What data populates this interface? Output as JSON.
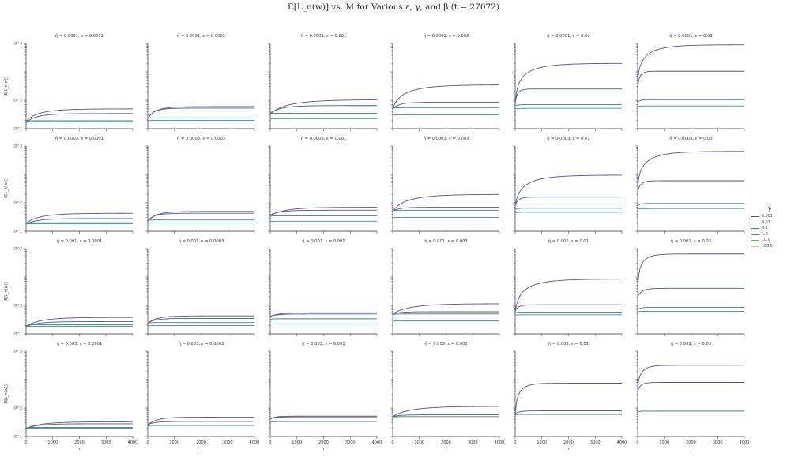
{
  "title": "E[L_n(w)] vs. M for Various ε, γ, and β (t = 27072)",
  "chart_data": {
    "type": "line",
    "grid": false,
    "yscale": "log",
    "xlim": [
      0,
      4000
    ],
    "ylim": [
      1,
      1000
    ],
    "xticks": [
      "0",
      "1000",
      "2000",
      "3000",
      "4000"
    ],
    "yticks": [
      "10^0",
      "10^1",
      "10^2",
      "10^3"
    ],
    "xlabel": "τ",
    "ylabel": "E[L_n(w)]",
    "legend": {
      "title": "γ̃",
      "placement": "right",
      "entries": [
        "0.001",
        "0.01",
        "0.1",
        "1.0",
        "10.0",
        "100.0"
      ],
      "colors": [
        "#5a4e92",
        "#485d8e",
        "#3c7b8e",
        "#2f9a86",
        "#4ec06c",
        "#b9dc3c"
      ]
    },
    "panels": [
      {
        "title": "η̃ = 0.0001, ε = 0.0001",
        "series": [
          {
            "name": "0.001",
            "start": 1.8,
            "end": 5.0,
            "rate": 700
          },
          {
            "name": "0.01",
            "start": 1.6,
            "end": 3.4,
            "rate": 500
          },
          {
            "name": "0.1",
            "start": 1.8,
            "end": 1.9,
            "rate": 100
          },
          {
            "name": "1.0",
            "start": 1.7,
            "end": 1.75,
            "rate": 100
          }
        ]
      },
      {
        "title": "η̃ = 0.0001, ε = 0.0003",
        "series": [
          {
            "name": "0.001",
            "start": 2.2,
            "end": 6.0,
            "rate": 400
          },
          {
            "name": "0.01",
            "start": 2.2,
            "end": 5.3,
            "rate": 300
          },
          {
            "name": "0.1",
            "start": 2.3,
            "end": 2.4,
            "rate": 100
          },
          {
            "name": "1.0",
            "start": 1.9,
            "end": 1.95,
            "rate": 100
          }
        ]
      },
      {
        "title": "η̃ = 0.0001, ε = 0.001",
        "series": [
          {
            "name": "0.001",
            "start": 3.2,
            "end": 10.5,
            "rate": 1000
          },
          {
            "name": "0.01",
            "start": 3.5,
            "end": 6.5,
            "rate": 500
          },
          {
            "name": "0.1",
            "start": 3.4,
            "end": 3.5,
            "rate": 100
          },
          {
            "name": "1.0",
            "start": 2.2,
            "end": 2.25,
            "rate": 100
          }
        ]
      },
      {
        "title": "η̃ = 0.0001, ε = 0.003",
        "series": [
          {
            "name": "0.001",
            "start": 5.0,
            "end": 35.0,
            "rate": 900
          },
          {
            "name": "0.01",
            "start": 5.0,
            "end": 8.5,
            "rate": 300
          },
          {
            "name": "0.1",
            "start": 5.2,
            "end": 5.5,
            "rate": 100
          },
          {
            "name": "1.0",
            "start": 3.0,
            "end": 3.05,
            "rate": 100
          }
        ]
      },
      {
        "title": "η̃ = 0.0001, ε = 0.01",
        "series": [
          {
            "name": "0.001",
            "start": 8.0,
            "end": 200.0,
            "rate": 800
          },
          {
            "name": "0.01",
            "start": 8.0,
            "end": 25.0,
            "rate": 120
          },
          {
            "name": "0.1",
            "start": 6.5,
            "end": 7.0,
            "rate": 100
          },
          {
            "name": "1.0",
            "start": 5.0,
            "end": 5.2,
            "rate": 100
          }
        ]
      },
      {
        "title": "η̃ = 0.0001, ε = 0.03",
        "series": [
          {
            "name": "0.001",
            "start": 50.0,
            "end": 900.0,
            "rate": 700
          },
          {
            "name": "0.01",
            "start": 30.0,
            "end": 105.0,
            "rate": 120
          },
          {
            "name": "0.1",
            "start": 8.5,
            "end": 10.5,
            "rate": 100
          },
          {
            "name": "1.0",
            "start": 6.0,
            "end": 6.3,
            "rate": 100
          }
        ]
      },
      {
        "title": "η̃ = 0.0003, ε = 0.0001",
        "series": [
          {
            "name": "0.001",
            "start": 1.9,
            "end": 4.3,
            "rate": 700
          },
          {
            "name": "0.01",
            "start": 1.8,
            "end": 2.8,
            "rate": 500
          },
          {
            "name": "0.1",
            "start": 1.9,
            "end": 2.0,
            "rate": 100
          },
          {
            "name": "1.0",
            "start": 1.8,
            "end": 1.85,
            "rate": 100
          }
        ]
      },
      {
        "title": "η̃ = 0.0003, ε = 0.0003",
        "series": [
          {
            "name": "0.001",
            "start": 2.2,
            "end": 5.0,
            "rate": 400
          },
          {
            "name": "0.01",
            "start": 2.3,
            "end": 4.3,
            "rate": 300
          },
          {
            "name": "0.1",
            "start": 2.4,
            "end": 2.5,
            "rate": 100
          },
          {
            "name": "1.0",
            "start": 1.9,
            "end": 1.95,
            "rate": 100
          }
        ]
      },
      {
        "title": "η̃ = 0.0003, ε = 0.001",
        "series": [
          {
            "name": "0.001",
            "start": 3.5,
            "end": 7.0,
            "rate": 700
          },
          {
            "name": "0.01",
            "start": 3.7,
            "end": 5.5,
            "rate": 400
          },
          {
            "name": "0.1",
            "start": 3.4,
            "end": 3.5,
            "rate": 100
          },
          {
            "name": "1.0",
            "start": 2.2,
            "end": 2.25,
            "rate": 100
          }
        ]
      },
      {
        "title": "η̃ = 0.0003, ε = 0.003",
        "series": [
          {
            "name": "0.001",
            "start": 5.0,
            "end": 20.0,
            "rate": 900
          },
          {
            "name": "0.01",
            "start": 5.2,
            "end": 7.0,
            "rate": 300
          },
          {
            "name": "0.1",
            "start": 5.3,
            "end": 5.5,
            "rate": 100
          },
          {
            "name": "1.0",
            "start": 3.0,
            "end": 3.05,
            "rate": 100
          }
        ]
      },
      {
        "title": "η̃ = 0.0003, ε = 0.01",
        "series": [
          {
            "name": "0.001",
            "start": 8.0,
            "end": 95.0,
            "rate": 800
          },
          {
            "name": "0.01",
            "start": 8.0,
            "end": 16.0,
            "rate": 150
          },
          {
            "name": "0.1",
            "start": 6.0,
            "end": 6.5,
            "rate": 100
          },
          {
            "name": "1.0",
            "start": 4.5,
            "end": 4.7,
            "rate": 100
          }
        ]
      },
      {
        "title": "η̃ = 0.0003, ε = 0.03",
        "series": [
          {
            "name": "0.001",
            "start": 40.0,
            "end": 650.0,
            "rate": 700
          },
          {
            "name": "0.01",
            "start": 25.0,
            "end": 60.0,
            "rate": 150
          },
          {
            "name": "0.1",
            "start": 8.0,
            "end": 9.5,
            "rate": 100
          },
          {
            "name": "1.0",
            "start": 6.0,
            "end": 6.3,
            "rate": 100
          }
        ]
      },
      {
        "title": "η̃ = 0.001, ε = 0.0001",
        "series": [
          {
            "name": "0.001",
            "start": 1.8,
            "end": 3.8,
            "rate": 700
          },
          {
            "name": "0.01",
            "start": 1.8,
            "end": 2.7,
            "rate": 500
          },
          {
            "name": "0.1",
            "start": 1.9,
            "end": 2.1,
            "rate": 100
          },
          {
            "name": "1.0",
            "start": 1.8,
            "end": 1.85,
            "rate": 100
          }
        ]
      },
      {
        "title": "η̃ = 0.001, ε = 0.0003",
        "series": [
          {
            "name": "0.001",
            "start": 2.3,
            "end": 4.3,
            "rate": 400
          },
          {
            "name": "0.01",
            "start": 2.4,
            "end": 3.5,
            "rate": 300
          },
          {
            "name": "0.1",
            "start": 2.4,
            "end": 2.5,
            "rate": 100
          },
          {
            "name": "1.0",
            "start": 1.9,
            "end": 1.95,
            "rate": 100
          }
        ]
      },
      {
        "title": "η̃ = 0.001, ε = 0.001",
        "series": [
          {
            "name": "0.001",
            "start": 4.0,
            "end": 5.5,
            "rate": 300
          },
          {
            "name": "0.01",
            "start": 4.2,
            "end": 5.0,
            "rate": 300
          },
          {
            "name": "0.1",
            "start": 3.3,
            "end": 3.4,
            "rate": 100
          },
          {
            "name": "1.0",
            "start": 2.2,
            "end": 2.25,
            "rate": 100
          }
        ]
      },
      {
        "title": "η̃ = 0.001, ε = 0.003",
        "series": [
          {
            "name": "0.001",
            "start": 5.0,
            "end": 11.5,
            "rate": 900
          },
          {
            "name": "0.01",
            "start": 5.0,
            "end": 6.0,
            "rate": 300
          },
          {
            "name": "0.1",
            "start": 4.8,
            "end": 5.0,
            "rate": 100
          },
          {
            "name": "1.0",
            "start": 2.8,
            "end": 2.85,
            "rate": 100
          }
        ]
      },
      {
        "title": "η̃ = 0.001, ε = 0.01",
        "series": [
          {
            "name": "0.001",
            "start": 6.0,
            "end": 85.0,
            "rate": 800
          },
          {
            "name": "0.01",
            "start": 6.5,
            "end": 10.5,
            "rate": 150
          },
          {
            "name": "0.1",
            "start": 5.5,
            "end": 5.8,
            "rate": 100
          },
          {
            "name": "1.0",
            "start": 4.5,
            "end": 4.7,
            "rate": 100
          }
        ]
      },
      {
        "title": "η̃ = 0.001, ε = 0.03",
        "series": [
          {
            "name": "0.001",
            "start": 40.0,
            "end": 650.0,
            "rate": 300
          },
          {
            "name": "0.01",
            "start": 20.0,
            "end": 40.0,
            "rate": 200
          },
          {
            "name": "0.1",
            "start": 7.0,
            "end": 8.5,
            "rate": 100
          },
          {
            "name": "1.0",
            "start": 6.0,
            "end": 6.2,
            "rate": 100
          }
        ]
      },
      {
        "title": "η̃ = 0.003, ε = 0.0001",
        "series": [
          {
            "name": "0.001",
            "start": 1.9,
            "end": 3.3,
            "rate": 700
          },
          {
            "name": "0.01",
            "start": 1.9,
            "end": 2.8,
            "rate": 500
          },
          {
            "name": "0.1",
            "start": 2.0,
            "end": 2.1,
            "rate": 100
          },
          {
            "name": "1.0",
            "start": 1.9,
            "end": 1.95,
            "rate": 100
          }
        ]
      },
      {
        "title": "η̃ = 0.003, ε = 0.0003",
        "series": [
          {
            "name": "0.001",
            "start": 2.5,
            "end": 4.8,
            "rate": 400
          },
          {
            "name": "0.01",
            "start": 2.6,
            "end": 3.4,
            "rate": 300
          },
          {
            "name": "0.1",
            "start": 2.4,
            "end": 2.45,
            "rate": 100
          }
        ]
      },
      {
        "title": "η̃ = 0.003, ε = 0.001",
        "series": [
          {
            "name": "0.001",
            "start": 4.2,
            "end": 5.2,
            "rate": 200
          },
          {
            "name": "0.01",
            "start": 4.2,
            "end": 4.9,
            "rate": 200
          },
          {
            "name": "0.1",
            "start": 3.3,
            "end": 3.35,
            "rate": 100
          }
        ]
      },
      {
        "title": "η̃ = 0.003, ε = 0.003",
        "series": [
          {
            "name": "0.001",
            "start": 5.0,
            "end": 11.5,
            "rate": 900
          },
          {
            "name": "0.01",
            "start": 5.0,
            "end": 5.8,
            "rate": 300
          },
          {
            "name": "0.1",
            "start": 4.8,
            "end": 5.0,
            "rate": 100
          }
        ]
      },
      {
        "title": "η̃ = 0.003, ε = 0.01",
        "series": [
          {
            "name": "0.001",
            "start": 6.0,
            "end": 75.0,
            "rate": 300
          },
          {
            "name": "0.01",
            "start": 6.5,
            "end": 8.0,
            "rate": 200
          },
          {
            "name": "0.1",
            "start": 5.8,
            "end": 6.0,
            "rate": 100
          }
        ]
      },
      {
        "title": "η̃ = 0.003, ε = 0.03",
        "series": [
          {
            "name": "0.001",
            "start": 60.0,
            "end": 320.0,
            "rate": 250
          },
          {
            "name": "0.01",
            "start": 40.0,
            "end": 80.0,
            "rate": 150
          },
          {
            "name": "0.1",
            "start": 7.5,
            "end": 7.8,
            "rate": 100
          }
        ]
      }
    ]
  }
}
